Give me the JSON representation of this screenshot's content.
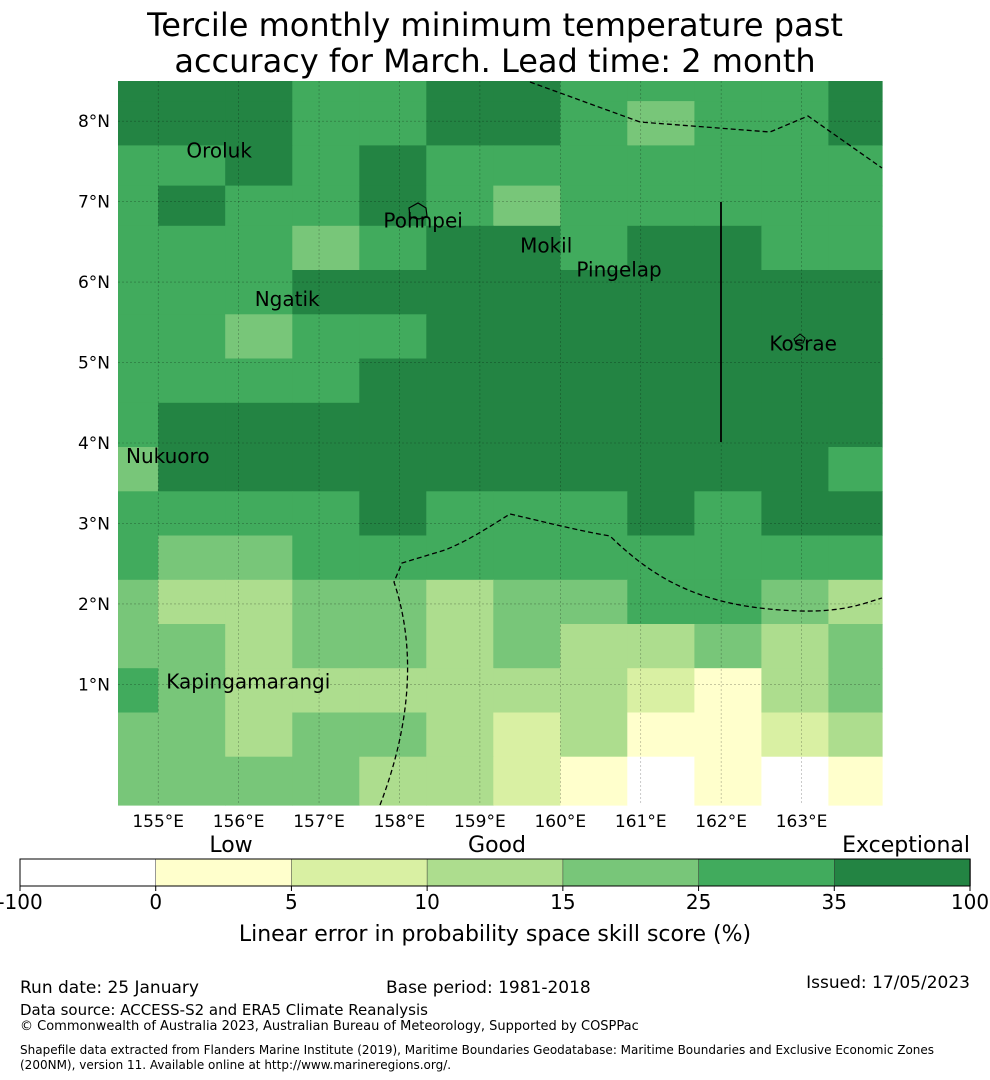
{
  "title": {
    "line1": "Tercile monthly minimum temperature past",
    "line2": "accuracy for March. Lead time: 2 month"
  },
  "map": {
    "lon_range": [
      154.5,
      164.0
    ],
    "lat_range": [
      -0.5,
      8.5
    ],
    "lon_ticks": [
      155,
      156,
      157,
      158,
      159,
      160,
      161,
      162,
      163
    ],
    "lon_tick_labels": [
      "155°E",
      "156°E",
      "157°E",
      "158°E",
      "159°E",
      "160°E",
      "161°E",
      "162°E",
      "163°E"
    ],
    "lat_ticks": [
      1,
      2,
      3,
      4,
      5,
      6,
      7,
      8
    ],
    "lat_tick_labels": [
      "1°N",
      "2°N",
      "3°N",
      "4°N",
      "5°N",
      "6°N",
      "7°N",
      "8°N"
    ],
    "places": [
      {
        "name": "Oroluk",
        "lon": 155.35,
        "lat": 7.55
      },
      {
        "name": "Pohnpei",
        "lon": 157.8,
        "lat": 6.68
      },
      {
        "name": "Mokil",
        "lon": 159.5,
        "lat": 6.37
      },
      {
        "name": "Pingelap",
        "lon": 160.2,
        "lat": 6.07
      },
      {
        "name": "Ngatik",
        "lon": 156.2,
        "lat": 5.7
      },
      {
        "name": "Kosrae",
        "lon": 162.6,
        "lat": 5.15
      },
      {
        "name": "Nukuoro",
        "lon": 154.6,
        "lat": 3.75
      },
      {
        "name": "Kapingamarangi",
        "lon": 155.1,
        "lat": 0.95
      }
    ],
    "skill_grid": {
      "lon_edges": [
        154.5,
        155.0,
        155.833,
        156.667,
        157.5,
        158.333,
        159.167,
        160.0,
        160.833,
        161.667,
        162.5,
        163.333,
        164.0
      ],
      "lat_edges_top_to_bottom": [
        8.5,
        8.25,
        7.7,
        7.2,
        6.7,
        6.15,
        5.6,
        5.05,
        4.5,
        3.95,
        3.4,
        2.85,
        2.3,
        1.75,
        1.2,
        0.65,
        0.1,
        -0.5
      ],
      "class_key": "0:<0 1:0-5 2:5-10 3:10-15 4:15-25 5:25-35 6:35-100",
      "rows": [
        [
          6,
          6,
          6,
          5,
          5,
          6,
          6,
          5,
          5,
          5,
          5,
          6
        ],
        [
          6,
          6,
          6,
          5,
          5,
          6,
          6,
          5,
          4,
          5,
          5,
          6
        ],
        [
          5,
          5,
          6,
          5,
          6,
          5,
          5,
          5,
          5,
          5,
          5,
          5
        ],
        [
          5,
          6,
          5,
          5,
          6,
          5,
          4,
          5,
          5,
          5,
          5,
          5
        ],
        [
          5,
          5,
          5,
          4,
          5,
          6,
          6,
          5,
          6,
          6,
          5,
          5
        ],
        [
          5,
          5,
          5,
          6,
          6,
          6,
          6,
          6,
          6,
          6,
          6,
          6
        ],
        [
          5,
          5,
          4,
          5,
          5,
          6,
          6,
          6,
          6,
          6,
          6,
          6
        ],
        [
          5,
          5,
          5,
          5,
          6,
          6,
          6,
          6,
          6,
          6,
          6,
          6
        ],
        [
          5,
          6,
          6,
          6,
          6,
          6,
          6,
          6,
          6,
          6,
          6,
          6
        ],
        [
          4,
          6,
          6,
          6,
          6,
          6,
          6,
          6,
          6,
          6,
          6,
          5
        ],
        [
          5,
          5,
          5,
          5,
          6,
          5,
          5,
          5,
          6,
          5,
          6,
          6
        ],
        [
          5,
          4,
          4,
          5,
          5,
          5,
          5,
          5,
          5,
          5,
          5,
          5
        ],
        [
          4,
          3,
          3,
          4,
          4,
          3,
          4,
          4,
          5,
          5,
          4,
          3
        ],
        [
          4,
          4,
          3,
          4,
          4,
          3,
          4,
          3,
          3,
          4,
          3,
          4
        ],
        [
          5,
          4,
          3,
          3,
          3,
          3,
          3,
          3,
          2,
          1,
          3,
          4
        ],
        [
          4,
          4,
          3,
          4,
          4,
          3,
          2,
          3,
          1,
          1,
          2,
          3
        ],
        [
          4,
          4,
          4,
          4,
          3,
          3,
          2,
          1,
          0,
          1,
          0,
          1
        ]
      ]
    }
  },
  "legend": {
    "category_labels": [
      "Low",
      "Good",
      "Exceptional"
    ],
    "tick_labels": [
      "-100",
      "0",
      "5",
      "10",
      "15",
      "25",
      "35",
      "100"
    ],
    "colors": [
      "#ffffff",
      "#ffffcc",
      "#d9f0a3",
      "#addd8e",
      "#78c679",
      "#41ab5d",
      "#238443"
    ],
    "label": "Linear error in probability space skill score (%)"
  },
  "footer": {
    "run_date": "Run date: 25 January",
    "base_period": "Base period: 1981-2018",
    "issued": "Issued: 17/05/2023",
    "data_source": "Data source: ACCESS-S2 and ERA5 Climate Reanalysis",
    "copyright": "© Commonwealth of Australia 2023, Australian Bureau of Meteorology, Supported by COSPPac",
    "shapefile": "Shapefile data extracted from Flanders Marine Institute (2019), Maritime Boundaries Geodatabase: Maritime Boundaries and Exclusive Economic Zones (200NM), version 11. Available online at http://www.marineregions.org/."
  }
}
